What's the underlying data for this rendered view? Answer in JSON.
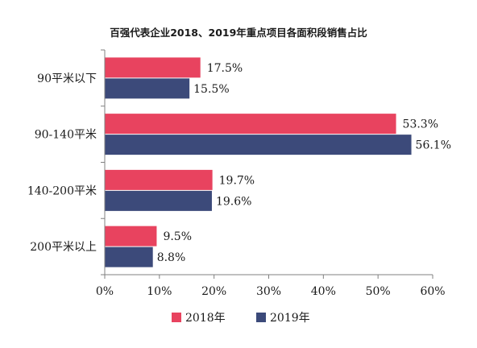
{
  "chart_data": {
    "type": "bar",
    "orientation": "horizontal",
    "title": "百强代表企业2018、2019年重点项目各面积段销售占比",
    "categories": [
      "90平米以下",
      "90-140平米",
      "140-200平米",
      "200平米以上"
    ],
    "series": [
      {
        "name": "2018年",
        "color": "#e8435f",
        "values": [
          17.5,
          53.3,
          19.7,
          9.5
        ],
        "labels": [
          "17.5%",
          "53.3%",
          "19.7%",
          "9.5%"
        ]
      },
      {
        "name": "2019年",
        "color": "#3c4a7a",
        "values": [
          15.5,
          56.1,
          19.6,
          8.8
        ],
        "labels": [
          "15.5%",
          "56.1%",
          "19.6%",
          "8.8%"
        ]
      }
    ],
    "xlim": [
      0,
      60
    ],
    "xticks": [
      0,
      10,
      20,
      30,
      40,
      50,
      60
    ],
    "xtick_labels": [
      "0%",
      "10%",
      "20%",
      "30%",
      "40%",
      "50%",
      "60%"
    ],
    "xlabel": "",
    "ylabel": "",
    "grid": false,
    "legend_position": "bottom"
  }
}
